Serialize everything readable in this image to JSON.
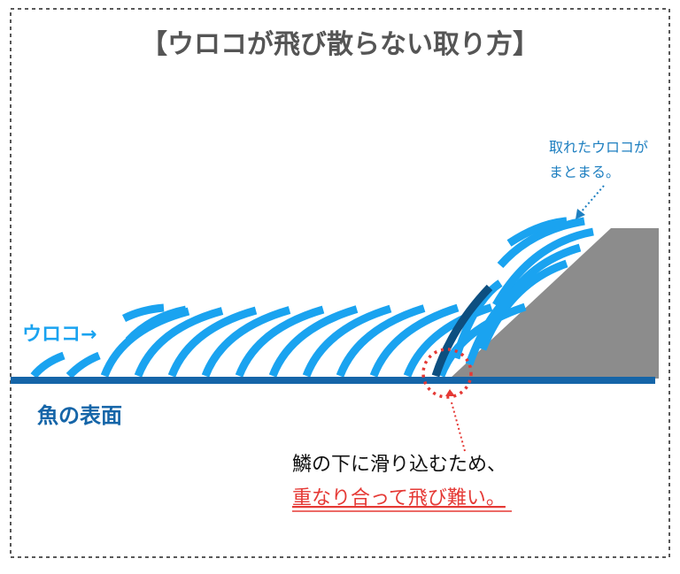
{
  "header": {
    "title": "【ウロコが飛び散らない取り方】"
  },
  "labels": {
    "collected": [
      "取れたウロコが",
      "まとまる。"
    ],
    "scales": "ウロコ→",
    "surface": "魚の表面",
    "caption": [
      "鱗の下に滑り込むため、",
      "重なり合って飛び難い。"
    ]
  }
}
